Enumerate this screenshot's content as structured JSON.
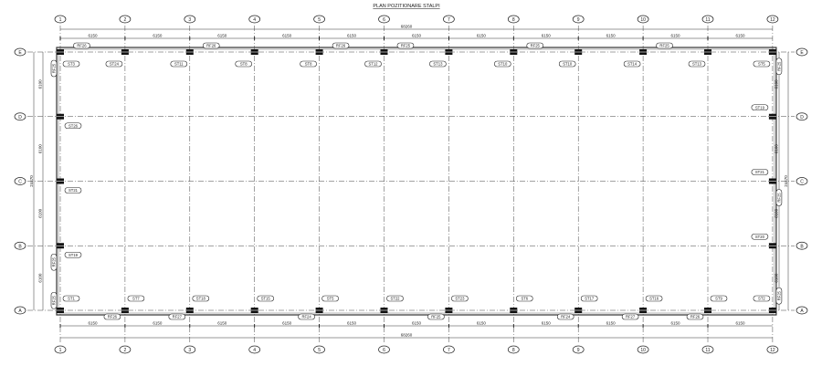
{
  "title": "PLAN POZITIONARE STALPI",
  "columns": [
    "1",
    "2",
    "3",
    "4",
    "5",
    "6",
    "7",
    "8",
    "9",
    "10",
    "11",
    "12"
  ],
  "rows": [
    "E",
    "D",
    "C",
    "B",
    "A"
  ],
  "dimensions": {
    "total_horizontal": "68260",
    "bay_spacings": [
      "6150",
      "6150",
      "6150",
      "6150",
      "6150",
      "6150",
      "6150",
      "6150",
      "6150",
      "6150",
      "6150"
    ],
    "total_vertical": "24470",
    "row_spacings": [
      "6100",
      "6100",
      "6100",
      "6100"
    ]
  },
  "columns_top": [
    "ST3",
    "ST24",
    "ST11",
    "ST8",
    "ST8",
    "ST12",
    "ST13",
    "ST10",
    "ST10",
    "ST14",
    "ST13",
    "ST5"
  ],
  "columns_bottom": [
    "ST1",
    "ST7",
    "ST18",
    "ST15",
    "ST5",
    "ST22",
    "ST23",
    "ST6",
    "ST17",
    "ST16",
    "ST9",
    "ST2"
  ],
  "left_columns": [
    {
      "row": "D",
      "label": "ST26"
    },
    {
      "row": "C",
      "label": "ST21"
    },
    {
      "row": "B",
      "label": "ST19"
    }
  ],
  "right_columns": [
    {
      "row": "D",
      "label": "ST19"
    },
    {
      "row": "C",
      "label": "ST21"
    },
    {
      "row": "B",
      "label": "ST20"
    }
  ],
  "bracing_top": [
    {
      "bay": 1,
      "label": "RF26"
    },
    {
      "bay": 3,
      "label": "RF26"
    },
    {
      "bay": 5,
      "label": "RF26"
    },
    {
      "bay": 6,
      "label": "RF25"
    },
    {
      "bay": 8,
      "label": "RF25"
    },
    {
      "bay": 10,
      "label": "RF25"
    }
  ],
  "bracing_bottom": [
    {
      "bay": 1,
      "label": "RF26"
    },
    {
      "bay": 2,
      "label": "RF27"
    },
    {
      "bay": 4,
      "label": "RF24"
    },
    {
      "bay": 6,
      "label": "RF25"
    },
    {
      "bay": 8,
      "label": "RF24"
    },
    {
      "bay": 9,
      "label": "RF27"
    },
    {
      "bay": 10,
      "label": "RF26"
    }
  ],
  "bracing_left": [
    {
      "bay": 1,
      "label": "RF25"
    },
    {
      "bay": 4,
      "label": "RF25"
    },
    {
      "bay": 4,
      "label": "RF25"
    }
  ],
  "bracing_right": [
    {
      "bay": 2,
      "label": "RF25"
    },
    {
      "bay": 3,
      "label": "RF25"
    },
    {
      "bay": 4,
      "label": "RF25"
    }
  ]
}
